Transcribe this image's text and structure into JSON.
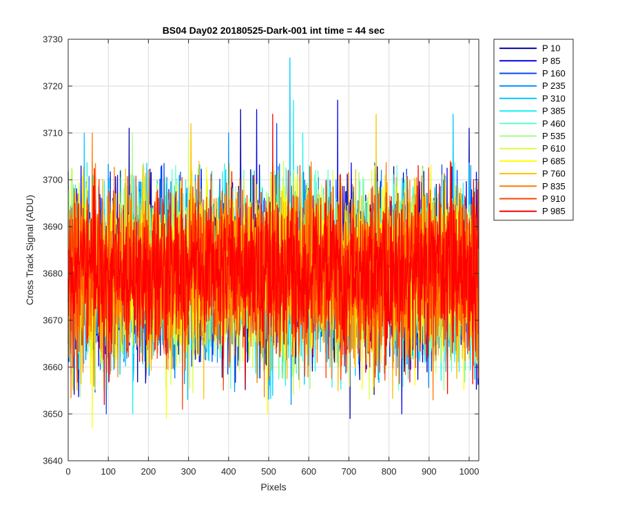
{
  "chart_data": {
    "type": "line",
    "title": "BS04 Day02 20180525-Dark-001 int time = 44 sec",
    "xlabel": "Pixels",
    "ylabel": "Cross Track Signal (ADU)",
    "xlim": [
      0,
      1024
    ],
    "ylim": [
      3640,
      3730
    ],
    "xticks": [
      0,
      100,
      200,
      300,
      400,
      500,
      600,
      700,
      800,
      900,
      1000
    ],
    "yticks": [
      3640,
      3650,
      3660,
      3670,
      3680,
      3690,
      3700,
      3710,
      3720,
      3730
    ],
    "xtick_labels": [
      "0",
      "100",
      "200",
      "300",
      "400",
      "500",
      "600",
      "700",
      "800",
      "900",
      "1000"
    ],
    "ytick_labels": [
      "3640",
      "3650",
      "3660",
      "3670",
      "3680",
      "3690",
      "3700",
      "3710",
      "3720",
      "3730"
    ],
    "grid": true,
    "legend_position": "outside-top-right",
    "x": {
      "start": 0,
      "end": 1023,
      "step": 1
    },
    "series": [
      {
        "name": "P 10",
        "color": "#0000A8",
        "mean": 3680,
        "std": 9,
        "spikes": [
          [
            152,
            3711
          ],
          [
            430,
            3715
          ],
          [
            703,
            3649
          ],
          [
            1000,
            3711
          ]
        ]
      },
      {
        "name": "P 85",
        "color": "#0000E8",
        "mean": 3680,
        "std": 9,
        "spikes": [
          [
            470,
            3715
          ],
          [
            672,
            3717
          ],
          [
            832,
            3650
          ]
        ]
      },
      {
        "name": "P 160",
        "color": "#0046FF",
        "mean": 3680,
        "std": 9,
        "spikes": [
          [
            95,
            3650
          ],
          [
            520,
            3712
          ]
        ]
      },
      {
        "name": "P 235",
        "color": "#008CFF",
        "mean": 3680,
        "std": 9,
        "spikes": [
          [
            400,
            3710
          ],
          [
            556,
            3652
          ]
        ]
      },
      {
        "name": "P 310",
        "color": "#00C8FF",
        "mean": 3680,
        "std": 9,
        "spikes": [
          [
            553,
            3726
          ],
          [
            960,
            3714
          ],
          [
            40,
            3710
          ]
        ]
      },
      {
        "name": "P 385",
        "color": "#1AF0F0",
        "mean": 3680,
        "std": 9,
        "spikes": [
          [
            161,
            3650
          ],
          [
            562,
            3717
          ],
          [
            585,
            3710
          ]
        ]
      },
      {
        "name": "P 460",
        "color": "#60FFC8",
        "mean": 3680,
        "std": 9,
        "spikes": []
      },
      {
        "name": "P 535",
        "color": "#A0FF88",
        "mean": 3680,
        "std": 9,
        "spikes": [
          [
            160,
            3710
          ]
        ]
      },
      {
        "name": "P 610",
        "color": "#D8FF40",
        "mean": 3680,
        "std": 9,
        "spikes": [
          [
            300,
            3709
          ]
        ]
      },
      {
        "name": "P 685",
        "color": "#FFFF00",
        "mean": 3680,
        "std": 9,
        "spikes": [
          [
            60,
            3647
          ],
          [
            245,
            3649
          ],
          [
            497,
            3650
          ]
        ]
      },
      {
        "name": "P 760",
        "color": "#FFC000",
        "mean": 3680,
        "std": 9,
        "spikes": [
          [
            768,
            3714
          ],
          [
            306,
            3712
          ]
        ]
      },
      {
        "name": "P 835",
        "color": "#FF7A00",
        "mean": 3680,
        "std": 9,
        "spikes": [
          [
            910,
            3653
          ],
          [
            60,
            3710
          ]
        ]
      },
      {
        "name": "P 910",
        "color": "#FF4000",
        "mean": 3680,
        "std": 9,
        "spikes": [
          [
            285,
            3651
          ]
        ]
      },
      {
        "name": "P 985",
        "color": "#FF0000",
        "mean": 3680,
        "std": 8,
        "spikes": [
          [
            510,
            3714
          ],
          [
            90,
            3652
          ]
        ]
      }
    ]
  }
}
